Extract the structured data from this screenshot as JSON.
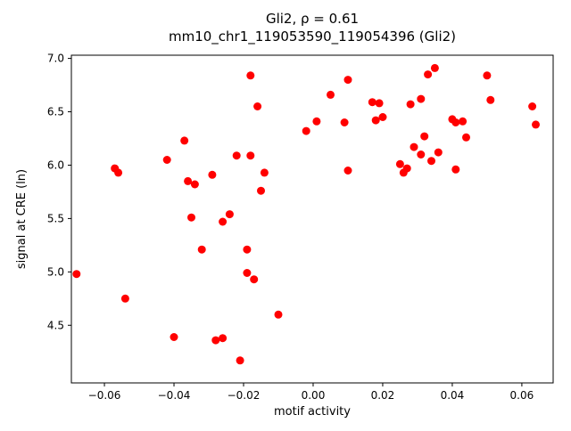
{
  "chart_data": {
    "type": "scatter",
    "title": "Gli2, ρ = 0.61",
    "subtitle": "mm10_chr1_119053590_119054396 (Gli2)",
    "xlabel": "motif activity",
    "ylabel": "signal at CRE (ln)",
    "xlim": [
      -0.0695,
      0.069
    ],
    "ylim": [
      3.96,
      7.03
    ],
    "xticks": [
      -0.06,
      -0.04,
      -0.02,
      0.0,
      0.02,
      0.04,
      0.06
    ],
    "yticks": [
      4.5,
      5.0,
      5.5,
      6.0,
      6.5,
      7.0
    ],
    "marker_color": "#ff0000",
    "legend": "none",
    "grid": false,
    "points": [
      [
        -0.068,
        4.98
      ],
      [
        -0.057,
        5.97
      ],
      [
        -0.056,
        5.93
      ],
      [
        -0.054,
        4.75
      ],
      [
        -0.042,
        6.05
      ],
      [
        -0.04,
        4.39
      ],
      [
        -0.037,
        6.23
      ],
      [
        -0.036,
        5.85
      ],
      [
        -0.034,
        5.82
      ],
      [
        -0.035,
        5.51
      ],
      [
        -0.032,
        5.21
      ],
      [
        -0.029,
        5.91
      ],
      [
        -0.028,
        4.36
      ],
      [
        -0.026,
        4.38
      ],
      [
        -0.026,
        5.47
      ],
      [
        -0.024,
        5.54
      ],
      [
        -0.022,
        6.09
      ],
      [
        -0.021,
        4.17
      ],
      [
        -0.019,
        5.21
      ],
      [
        -0.019,
        4.99
      ],
      [
        -0.018,
        6.84
      ],
      [
        -0.018,
        6.09
      ],
      [
        -0.017,
        4.93
      ],
      [
        -0.016,
        6.55
      ],
      [
        -0.015,
        5.76
      ],
      [
        -0.014,
        5.93
      ],
      [
        -0.01,
        4.6
      ],
      [
        -0.002,
        6.32
      ],
      [
        0.001,
        6.41
      ],
      [
        0.005,
        6.66
      ],
      [
        0.009,
        6.4
      ],
      [
        0.01,
        6.8
      ],
      [
        0.01,
        5.95
      ],
      [
        0.017,
        6.59
      ],
      [
        0.019,
        6.58
      ],
      [
        0.018,
        6.42
      ],
      [
        0.02,
        6.45
      ],
      [
        0.025,
        6.01
      ],
      [
        0.026,
        5.93
      ],
      [
        0.027,
        5.97
      ],
      [
        0.028,
        6.57
      ],
      [
        0.029,
        6.17
      ],
      [
        0.031,
        6.62
      ],
      [
        0.031,
        6.1
      ],
      [
        0.032,
        6.27
      ],
      [
        0.033,
        6.85
      ],
      [
        0.034,
        6.04
      ],
      [
        0.035,
        6.91
      ],
      [
        0.036,
        6.12
      ],
      [
        0.04,
        6.43
      ],
      [
        0.041,
        6.4
      ],
      [
        0.041,
        5.96
      ],
      [
        0.043,
        6.41
      ],
      [
        0.044,
        6.26
      ],
      [
        0.05,
        6.84
      ],
      [
        0.051,
        6.61
      ],
      [
        0.063,
        6.55
      ],
      [
        0.064,
        6.38
      ]
    ]
  }
}
